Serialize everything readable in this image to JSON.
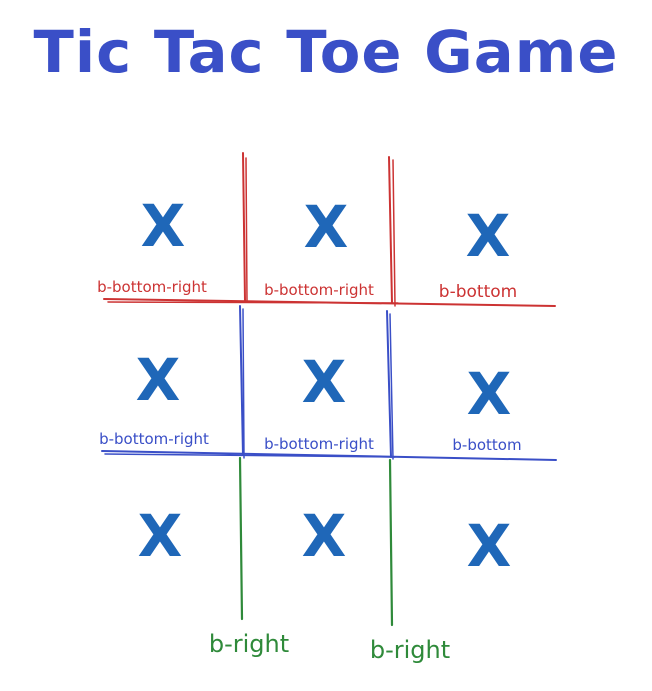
{
  "title": "Tic Tac Toe Game",
  "colors": {
    "title": "#3a4fc7",
    "mark": "#1f67b8",
    "red": "#cc3333",
    "blue": "#3a4fc7",
    "green": "#2f8a3a"
  },
  "board": {
    "cells": [
      {
        "mark": "X",
        "label": "b-bottom-right",
        "label_color": "red"
      },
      {
        "mark": "X",
        "label": "b-bottom-right",
        "label_color": "red"
      },
      {
        "mark": "X",
        "label": "b-bottom",
        "label_color": "red"
      },
      {
        "mark": "X",
        "label": "b-bottom-right",
        "label_color": "blue"
      },
      {
        "mark": "X",
        "label": "b-bottom-right",
        "label_color": "blue"
      },
      {
        "mark": "X",
        "label": "b-bottom",
        "label_color": "blue"
      },
      {
        "mark": "X",
        "label": "",
        "label_color": ""
      },
      {
        "mark": "X",
        "label": "",
        "label_color": ""
      },
      {
        "mark": "X",
        "label": "",
        "label_color": ""
      }
    ],
    "bottom_labels": [
      "b-right",
      "b-right"
    ]
  }
}
